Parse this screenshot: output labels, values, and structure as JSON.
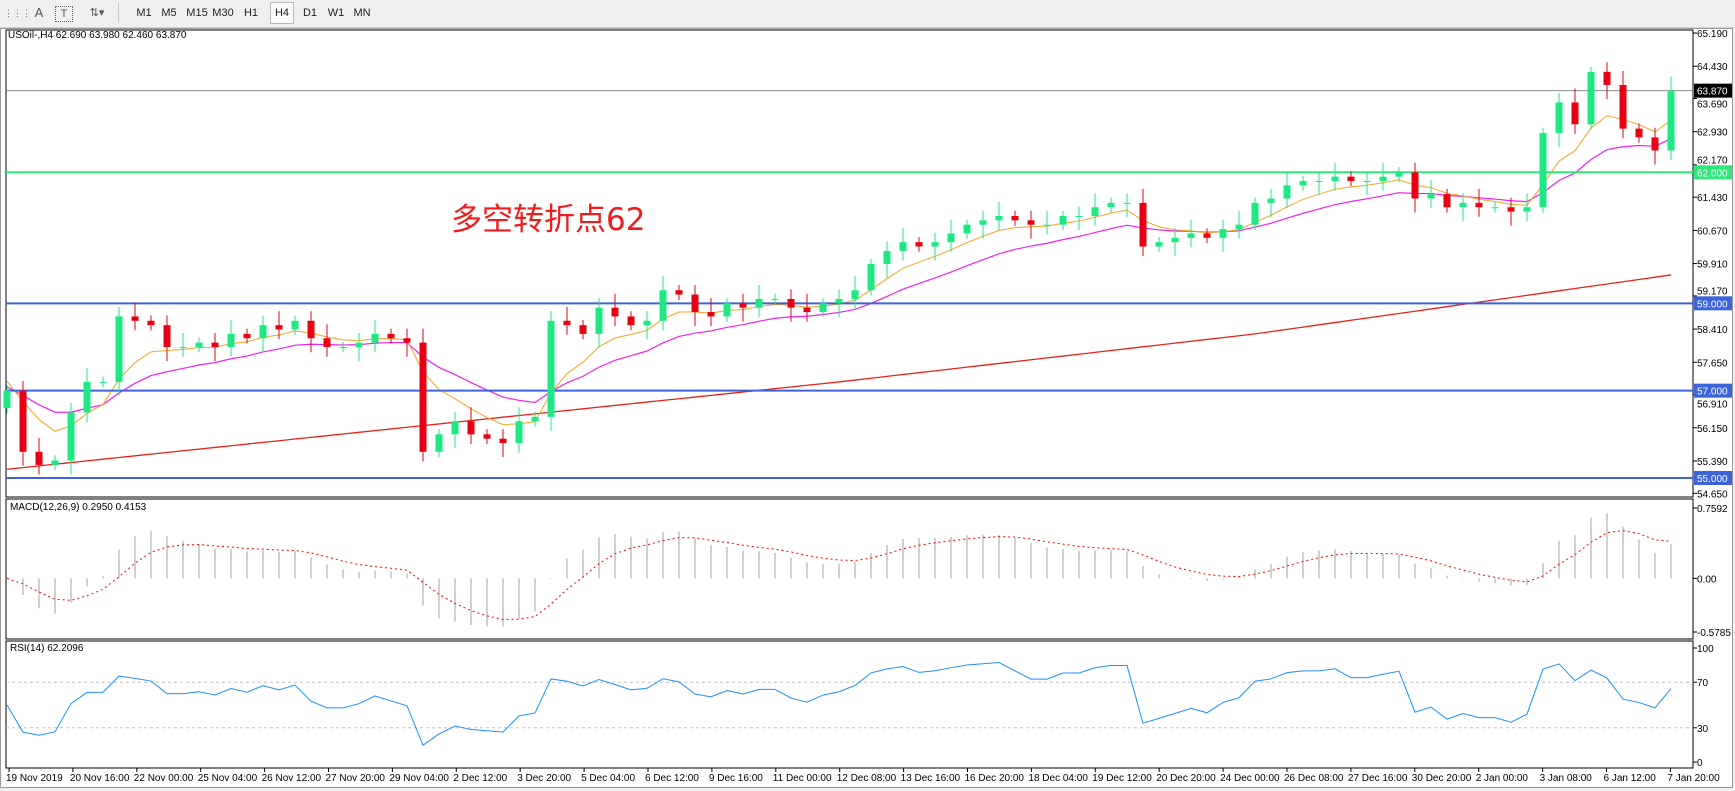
{
  "toolbar": {
    "icons": [
      "grid-properties-icon",
      "text-icon",
      "text-label-icon",
      "arrows-icon"
    ],
    "text_tool": "A",
    "timeframes": [
      "M1",
      "M5",
      "M15",
      "M30",
      "H1",
      "H4",
      "D1",
      "W1",
      "MN"
    ],
    "active_timeframe": "H4"
  },
  "chart": {
    "header": "USOil-,H4  62.690 63.980 62.460 63.870",
    "annotation": "多空转折点62",
    "price_ticks": [
      "65.190",
      "64.430",
      "63.690",
      "62.930",
      "62.170",
      "61.430",
      "60.670",
      "59.910",
      "59.170",
      "58.410",
      "57.650",
      "56.910",
      "56.150",
      "55.390",
      "54.650"
    ],
    "levels": [
      {
        "price": 63.87,
        "label": "63.870",
        "color": "#8c8c8c",
        "badge": "#000000"
      },
      {
        "price": 62.0,
        "label": "62.000",
        "color": "#2ee87a",
        "badge": "#2ee87a"
      },
      {
        "price": 59.0,
        "label": "59.000",
        "color": "#3d63d8",
        "badge": "#3d63d8"
      },
      {
        "price": 57.0,
        "label": "57.000",
        "color": "#3d63d8",
        "badge": "#3d63d8"
      },
      {
        "price": 55.0,
        "label": "55.000",
        "color": "#3d63d8",
        "badge": "#3d63d8"
      }
    ],
    "colors": {
      "bull": "#1ee884",
      "bear": "#e60012",
      "ma_fast": "#f5a623",
      "ma_mid": "#ee22ee",
      "ma_slow": "#e8201a",
      "rsi": "#1e90ff",
      "macd_hist": "#c0c0c0",
      "macd_signal": "#ff0000"
    },
    "time_labels": [
      "19 Nov 2019",
      "20 Nov 16:00",
      "22 Nov 00:00",
      "25 Nov 04:00",
      "26 Nov 12:00",
      "27 Nov 20:00",
      "29 Nov 04:00",
      "2 Dec 12:00",
      "3 Dec 20:00",
      "5 Dec 04:00",
      "6 Dec 12:00",
      "9 Dec 16:00",
      "11 Dec 00:00",
      "12 Dec 08:00",
      "13 Dec 16:00",
      "16 Dec 20:00",
      "18 Dec 04:00",
      "19 Dec 12:00",
      "20 Dec 20:00",
      "24 Dec 00:00",
      "26 Dec 08:00",
      "27 Dec 16:00",
      "30 Dec 20:00",
      "2 Jan 00:00",
      "3 Jan 08:00",
      "6 Jan 12:00",
      "7 Jan 20:00"
    ]
  },
  "macd": {
    "title": "MACD(12,26,9) 0.2950 0.4153",
    "ticks": [
      "0.7592",
      "0.00",
      "-0.5785"
    ]
  },
  "rsi": {
    "title": "RSI(14) 62.2096",
    "ticks": [
      "100",
      "70",
      "30",
      "0"
    ]
  },
  "chart_data": {
    "type": "candlestick",
    "symbol": "USOil-",
    "timeframe": "H4",
    "ylim": [
      54.65,
      65.19
    ],
    "first_open": 56.6,
    "close": [
      57.0,
      55.6,
      55.3,
      55.4,
      56.5,
      57.2,
      57.2,
      58.7,
      58.6,
      58.5,
      58.0,
      58.0,
      58.1,
      58.0,
      58.3,
      58.2,
      58.5,
      58.4,
      58.6,
      58.2,
      58.0,
      58.0,
      58.1,
      58.3,
      58.2,
      58.1,
      55.6,
      56.0,
      56.3,
      56.0,
      55.9,
      55.8,
      56.3,
      56.4,
      58.6,
      58.5,
      58.3,
      58.9,
      58.7,
      58.5,
      58.6,
      59.3,
      59.2,
      58.8,
      58.7,
      59.0,
      58.9,
      59.1,
      59.1,
      58.9,
      58.8,
      59.0,
      59.1,
      59.3,
      59.9,
      60.2,
      60.4,
      60.3,
      60.4,
      60.6,
      60.8,
      60.9,
      61.0,
      60.9,
      60.8,
      60.8,
      61.0,
      61.0,
      61.2,
      61.3,
      61.3,
      60.3,
      60.4,
      60.5,
      60.6,
      60.5,
      60.7,
      60.8,
      61.3,
      61.4,
      61.7,
      61.8,
      61.8,
      61.9,
      61.8,
      61.8,
      61.9,
      62.0,
      61.4,
      61.5,
      61.2,
      61.3,
      61.2,
      61.2,
      61.1,
      61.2,
      62.9,
      63.6,
      63.1,
      64.3,
      64.0,
      63.0,
      62.8,
      62.5,
      63.87
    ],
    "ma_slow": [
      [
        0,
        55.2
      ],
      [
        26,
        56.2
      ],
      [
        52,
        57.2
      ],
      [
        78,
        58.3
      ],
      [
        104,
        59.65
      ]
    ],
    "macd_range": [
      -0.5785,
      0.7592
    ],
    "rsi_levels": [
      70,
      30
    ]
  }
}
